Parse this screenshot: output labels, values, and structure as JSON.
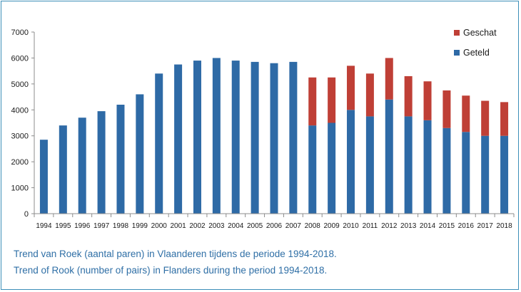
{
  "colors": {
    "geteld": "#2e6aa6",
    "geschat": "#bf3f36",
    "axis": "#8c8c8c",
    "text": "#1a1a1a",
    "caption": "#2f6fa6",
    "frame": "#3d8fb8"
  },
  "captions": {
    "line1": "Trend van Roek (aantal paren) in Vlaanderen tijdens de periode 1994-2018.",
    "line2": "Trend of Rook (number of pairs) in Flanders during the period 1994-2018."
  },
  "chart_data": {
    "type": "bar",
    "stacked": true,
    "title": "",
    "xlabel": "",
    "ylabel": "",
    "ylim": [
      0,
      7000
    ],
    "yticks": [
      0,
      1000,
      2000,
      3000,
      4000,
      5000,
      6000,
      7000
    ],
    "grid": false,
    "legend_position": "top-right",
    "categories": [
      "1994",
      "1995",
      "1996",
      "1997",
      "1998",
      "1999",
      "2000",
      "2001",
      "2002",
      "2003",
      "2004",
      "2005",
      "2006",
      "2007",
      "2008",
      "2009",
      "2010",
      "2011",
      "2012",
      "2013",
      "2014",
      "2015",
      "2016",
      "2017",
      "2018"
    ],
    "series": [
      {
        "name": "Geteld",
        "color": "#2e6aa6",
        "values": [
          2850,
          3400,
          3700,
          3950,
          4200,
          4600,
          5400,
          5750,
          5900,
          6000,
          5900,
          5850,
          5800,
          5850,
          3400,
          3500,
          4000,
          3750,
          4400,
          3750,
          3600,
          3300,
          3150,
          3000,
          3000
        ]
      },
      {
        "name": "Geschat",
        "color": "#bf3f36",
        "values": [
          0,
          0,
          0,
          0,
          0,
          0,
          0,
          0,
          0,
          0,
          0,
          0,
          0,
          0,
          1850,
          1750,
          1700,
          1650,
          1600,
          1550,
          1500,
          1450,
          1400,
          1350,
          1300
        ]
      }
    ],
    "legend_order": [
      "Geschat",
      "Geteld"
    ]
  }
}
